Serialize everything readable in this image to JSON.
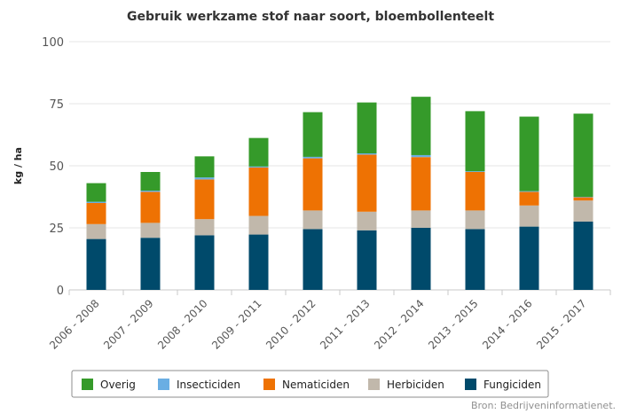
{
  "chart_data": {
    "type": "bar",
    "stacked": true,
    "title": "Gebruik werkzame stof naar soort, bloembollenteelt",
    "xlabel": "",
    "ylabel": "kg / ha",
    "ylim": [
      0,
      100
    ],
    "yticks": [
      0,
      25,
      50,
      75,
      100
    ],
    "grid": true,
    "legend_position": "bottom",
    "categories": [
      "2006 - 2008",
      "2007 - 2009",
      "2008 - 2010",
      "2009 - 2011",
      "2010 - 2012",
      "2011 - 2013",
      "2012 - 2014",
      "2013 - 2015",
      "2014 - 2016",
      "2015 - 2017"
    ],
    "series": [
      {
        "name": "Fungiciden",
        "color": "#004a6b",
        "values": [
          20.5,
          21,
          22,
          22.3,
          24.5,
          24,
          25,
          24.5,
          25.5,
          27.5
        ]
      },
      {
        "name": "Herbiciden",
        "color": "#c1b8ab",
        "values": [
          6,
          6,
          6.5,
          7.5,
          7.5,
          7.5,
          7,
          7.5,
          8.5,
          8.5
        ]
      },
      {
        "name": "Nematiciden",
        "color": "#ee7203",
        "values": [
          8.5,
          12.5,
          16,
          19.5,
          21,
          23,
          21.5,
          15.5,
          5.5,
          1.3
        ]
      },
      {
        "name": "Insecticiden",
        "color": "#6aaee3",
        "values": [
          0.5,
          0.5,
          0.8,
          0.4,
          0.6,
          0.5,
          0.8,
          0.3,
          0.3,
          0.2
        ]
      },
      {
        "name": "Overig",
        "color": "#359a2a",
        "values": [
          7.5,
          7.5,
          8.5,
          11.5,
          18,
          20.5,
          23.5,
          24.2,
          30,
          33.5
        ]
      }
    ],
    "legend_order": [
      "Overig",
      "Insecticiden",
      "Nematiciden",
      "Herbiciden",
      "Fungiciden"
    ],
    "source": "Bron: Bedrijveninformatienet."
  }
}
